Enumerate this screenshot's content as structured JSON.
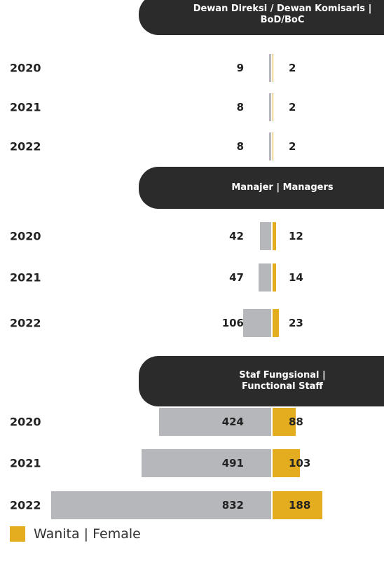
{
  "chart_data": [
    {
      "type": "bar",
      "title": "Dewan Direksi / Dewan Komisaris |\nBoD/BoC",
      "categories": [
        "2020",
        "2021",
        "2022"
      ],
      "series": [
        {
          "color": "#b5b7ba",
          "values": [
            9,
            8,
            8
          ]
        },
        {
          "color": "#e3ad1f",
          "values": [
            2,
            2,
            2
          ]
        }
      ]
    },
    {
      "type": "bar",
      "title": "Manajer | Managers",
      "categories": [
        "2020",
        "2021",
        "2022"
      ],
      "series": [
        {
          "color": "#b5b7ba",
          "values": [
            42,
            47,
            106
          ]
        },
        {
          "color": "#e3ad1f",
          "values": [
            12,
            14,
            23
          ]
        }
      ]
    },
    {
      "type": "bar",
      "title": "Staf Fungsional |\nFunctional Staff",
      "categories": [
        "2020",
        "2021",
        "2022"
      ],
      "series": [
        {
          "color": "#b5b7ba",
          "values": [
            424,
            491,
            832
          ]
        },
        {
          "name": "Wanita | Female",
          "color": "#e3ad1f",
          "values": [
            88,
            103,
            188
          ]
        }
      ]
    }
  ]
}
